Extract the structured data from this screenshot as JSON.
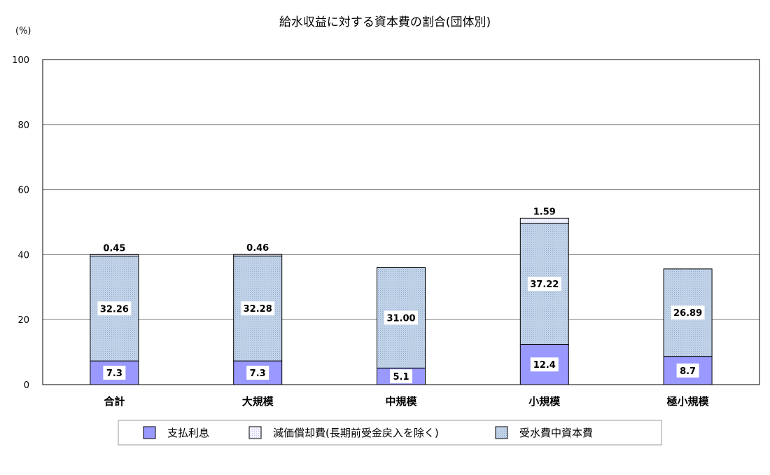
{
  "chart_data": {
    "type": "bar",
    "stacked": true,
    "title": "給水収益に対する資本費の割合(団体別)",
    "unit": "(%)",
    "xlabel": "",
    "ylabel": "",
    "ylim": [
      0,
      100
    ],
    "yticks": [
      0,
      20,
      40,
      60,
      80,
      100
    ],
    "grid": true,
    "legend_position": "bottom",
    "categories": [
      "合計",
      "大規模",
      "中規模",
      "小規模",
      "極小規模"
    ],
    "series": [
      {
        "name": "支払利息",
        "values": [
          7.3,
          7.3,
          5.1,
          12.4,
          8.7
        ],
        "labels": [
          "7.3",
          "7.3",
          "5.1",
          "12.4",
          "8.7"
        ],
        "color": "#9999ff"
      },
      {
        "name": "受水費中資本費",
        "values": [
          32.26,
          32.28,
          31.0,
          37.22,
          26.89
        ],
        "labels": [
          "32.26",
          "32.28",
          "31.00",
          "37.22",
          "26.89"
        ],
        "color": "#c8d8ec"
      },
      {
        "name": "減価償却費(長期前受金戻入を除く)",
        "values": [
          0.45,
          0.46,
          null,
          1.59,
          null
        ],
        "labels": [
          "0.45",
          "0.46",
          null,
          "1.59",
          null
        ],
        "color": "#eeeeff"
      }
    ],
    "legend_order": [
      "支払利息",
      "減価償却費(長期前受金戻入を除く)",
      "受水費中資本費"
    ]
  }
}
